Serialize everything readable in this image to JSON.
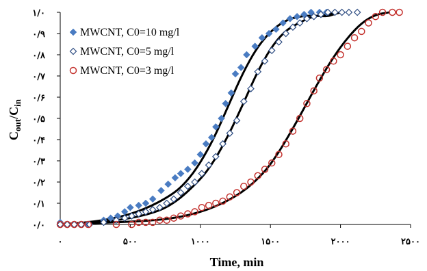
{
  "chart_data": {
    "type": "scatter",
    "title": "",
    "xlabel": "Time, min",
    "ylabel_main": "C",
    "ylabel_sub1": "out",
    "ylabel_slash": "/C",
    "ylabel_sub2": "in",
    "xlim": [
      0,
      2500
    ],
    "ylim": [
      0,
      1
    ],
    "x_ticks": [
      0,
      500,
      1000,
      1500,
      2000,
      2500
    ],
    "x_tick_labels": [
      "۰",
      "۵۰۰",
      "۱۰۰۰",
      "۱۵۰۰",
      "۲۰۰۰",
      "۲۵۰۰"
    ],
    "y_ticks": [
      0,
      0.1,
      0.2,
      0.3,
      0.4,
      0.5,
      0.6,
      0.7,
      0.8,
      0.9,
      1.0
    ],
    "y_tick_labels": [
      "۰/۰",
      "۰/۱",
      "۰/۲",
      "۰/۳",
      "۰/۴",
      "۰/۵",
      "۰/۶",
      "۰/۷",
      "۰/۸",
      "۰/۹",
      "۱/۰"
    ],
    "grid": false,
    "legend_position": "top-left",
    "series": [
      {
        "name": "MWCNT, C0=10 mg/l",
        "marker": "diamond-filled",
        "color": "#4a7cc2",
        "points": [
          [
            0,
            0.01
          ],
          [
            50,
            0.0
          ],
          [
            100,
            0.0
          ],
          [
            150,
            0.0
          ],
          [
            200,
            0.0
          ],
          [
            310,
            0.02
          ],
          [
            360,
            0.03
          ],
          [
            410,
            0.04
          ],
          [
            460,
            0.06
          ],
          [
            500,
            0.08
          ],
          [
            560,
            0.09
          ],
          [
            610,
            0.1
          ],
          [
            660,
            0.12
          ],
          [
            720,
            0.16
          ],
          [
            770,
            0.19
          ],
          [
            820,
            0.22
          ],
          [
            860,
            0.24
          ],
          [
            910,
            0.26
          ],
          [
            960,
            0.29
          ],
          [
            1000,
            0.33
          ],
          [
            1040,
            0.38
          ],
          [
            1080,
            0.41
          ],
          [
            1110,
            0.46
          ],
          [
            1150,
            0.5
          ],
          [
            1180,
            0.57
          ],
          [
            1220,
            0.62
          ],
          [
            1250,
            0.71
          ],
          [
            1290,
            0.74
          ],
          [
            1330,
            0.8
          ],
          [
            1390,
            0.84
          ],
          [
            1440,
            0.88
          ],
          [
            1490,
            0.9
          ],
          [
            1540,
            0.92
          ],
          [
            1590,
            0.95
          ],
          [
            1640,
            0.97
          ],
          [
            1690,
            0.98
          ],
          [
            1740,
            0.99
          ],
          [
            1790,
            1.0
          ],
          [
            1850,
            1.0
          ],
          [
            1900,
            1.0
          ]
        ]
      },
      {
        "name": "MWCNT, C0=5 mg/l",
        "marker": "diamond-open",
        "color": "#2b4a80",
        "points": [
          [
            0,
            0.0
          ],
          [
            50,
            0.0
          ],
          [
            100,
            0.0
          ],
          [
            150,
            0.0
          ],
          [
            210,
            0.0
          ],
          [
            310,
            0.01
          ],
          [
            400,
            0.02
          ],
          [
            460,
            0.03
          ],
          [
            510,
            0.04
          ],
          [
            560,
            0.05
          ],
          [
            610,
            0.06
          ],
          [
            660,
            0.07
          ],
          [
            710,
            0.08
          ],
          [
            760,
            0.1
          ],
          [
            810,
            0.12
          ],
          [
            860,
            0.15
          ],
          [
            910,
            0.18
          ],
          [
            960,
            0.2
          ],
          [
            1010,
            0.24
          ],
          [
            1060,
            0.28
          ],
          [
            1110,
            0.32
          ],
          [
            1160,
            0.38
          ],
          [
            1210,
            0.43
          ],
          [
            1260,
            0.49
          ],
          [
            1310,
            0.58
          ],
          [
            1360,
            0.64
          ],
          [
            1410,
            0.72
          ],
          [
            1460,
            0.77
          ],
          [
            1510,
            0.82
          ],
          [
            1560,
            0.86
          ],
          [
            1610,
            0.9
          ],
          [
            1660,
            0.93
          ],
          [
            1710,
            0.95
          ],
          [
            1760,
            0.97
          ],
          [
            1810,
            0.98
          ],
          [
            1860,
            0.99
          ],
          [
            1910,
            1.0
          ],
          [
            1960,
            1.0
          ],
          [
            2010,
            1.0
          ],
          [
            2060,
            1.0
          ],
          [
            2120,
            1.0
          ]
        ]
      },
      {
        "name": "MWCNT, C0=3 mg/l",
        "marker": "circle-open",
        "color": "#c4332f",
        "points": [
          [
            0,
            0.0
          ],
          [
            50,
            0.0
          ],
          [
            100,
            0.0
          ],
          [
            150,
            0.0
          ],
          [
            200,
            0.0
          ],
          [
            400,
            0.0
          ],
          [
            510,
            0.0
          ],
          [
            560,
            0.01
          ],
          [
            610,
            0.01
          ],
          [
            660,
            0.01
          ],
          [
            710,
            0.02
          ],
          [
            760,
            0.02
          ],
          [
            810,
            0.03
          ],
          [
            860,
            0.04
          ],
          [
            910,
            0.05
          ],
          [
            960,
            0.06
          ],
          [
            1010,
            0.08
          ],
          [
            1060,
            0.09
          ],
          [
            1110,
            0.1
          ],
          [
            1160,
            0.11
          ],
          [
            1210,
            0.13
          ],
          [
            1260,
            0.15
          ],
          [
            1310,
            0.18
          ],
          [
            1360,
            0.2
          ],
          [
            1410,
            0.23
          ],
          [
            1460,
            0.26
          ],
          [
            1510,
            0.29
          ],
          [
            1560,
            0.33
          ],
          [
            1610,
            0.38
          ],
          [
            1660,
            0.44
          ],
          [
            1710,
            0.5
          ],
          [
            1760,
            0.57
          ],
          [
            1810,
            0.63
          ],
          [
            1850,
            0.69
          ],
          [
            1900,
            0.73
          ],
          [
            1950,
            0.77
          ],
          [
            2000,
            0.8
          ],
          [
            2050,
            0.84
          ],
          [
            2100,
            0.88
          ],
          [
            2150,
            0.91
          ],
          [
            2200,
            0.95
          ],
          [
            2250,
            0.98
          ],
          [
            2300,
            1.0
          ],
          [
            2370,
            1.0
          ],
          [
            2420,
            1.0
          ]
        ]
      }
    ],
    "fit_curves": [
      {
        "points": [
          [
            0,
            0
          ],
          [
            200,
            0.01
          ],
          [
            400,
            0.03
          ],
          [
            600,
            0.07
          ],
          [
            800,
            0.14
          ],
          [
            900,
            0.2
          ],
          [
            1000,
            0.29
          ],
          [
            1100,
            0.41
          ],
          [
            1200,
            0.56
          ],
          [
            1300,
            0.71
          ],
          [
            1400,
            0.83
          ],
          [
            1500,
            0.91
          ],
          [
            1600,
            0.96
          ],
          [
            1700,
            0.98
          ],
          [
            1800,
            0.985
          ],
          [
            1900,
            0.98
          ],
          [
            1950,
            0.99
          ],
          [
            2000,
            1.0
          ]
        ]
      },
      {
        "points": [
          [
            0,
            0
          ],
          [
            300,
            0.01
          ],
          [
            600,
            0.04
          ],
          [
            800,
            0.09
          ],
          [
            1000,
            0.21
          ],
          [
            1100,
            0.3
          ],
          [
            1200,
            0.42
          ],
          [
            1300,
            0.56
          ],
          [
            1400,
            0.71
          ],
          [
            1500,
            0.83
          ],
          [
            1600,
            0.91
          ],
          [
            1700,
            0.95
          ],
          [
            1800,
            0.98
          ],
          [
            1900,
            0.99
          ],
          [
            2000,
            1.0
          ]
        ]
      },
      {
        "points": [
          [
            0,
            0
          ],
          [
            400,
            0.01
          ],
          [
            700,
            0.02
          ],
          [
            900,
            0.04
          ],
          [
            1100,
            0.08
          ],
          [
            1300,
            0.15
          ],
          [
            1450,
            0.24
          ],
          [
            1550,
            0.33
          ],
          [
            1650,
            0.44
          ],
          [
            1750,
            0.56
          ],
          [
            1850,
            0.68
          ],
          [
            1950,
            0.79
          ],
          [
            2050,
            0.88
          ],
          [
            2150,
            0.95
          ],
          [
            2250,
            0.99
          ],
          [
            2350,
            1.0
          ]
        ]
      }
    ]
  }
}
